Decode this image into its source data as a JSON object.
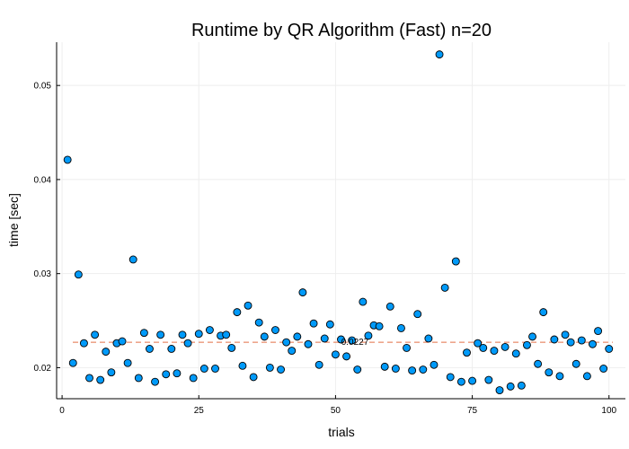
{
  "chart_data": {
    "type": "scatter",
    "title": "Runtime by QR Algorithm (Fast)  n=20",
    "xlabel": "trials",
    "ylabel": "time [sec]",
    "xlim": [
      -1,
      103
    ],
    "ylim": [
      0.0167,
      0.0546
    ],
    "xticks": [
      0,
      25,
      50,
      75,
      100
    ],
    "xtick_labels": [
      "0",
      "25",
      "50",
      "75",
      "100"
    ],
    "yticks": [
      0.02,
      0.03,
      0.04,
      0.05
    ],
    "ytick_labels": [
      "0.02",
      "0.03",
      "0.04",
      "0.05"
    ],
    "grid": true,
    "legend": "none",
    "marker_color": "#009af9",
    "marker_edge_color": "#000000",
    "mean_line_color": "#e26f46",
    "mean_value": 0.0227,
    "mean_label": "0.0227",
    "series": [
      {
        "x": [
          1,
          2,
          3,
          4,
          5,
          6,
          7,
          8,
          9,
          10,
          11,
          12,
          13,
          14,
          15,
          16,
          17,
          18,
          19,
          20,
          21,
          22,
          23,
          24,
          25,
          26,
          27,
          28,
          29,
          30,
          31,
          32,
          33,
          34,
          35,
          36,
          37,
          38,
          39,
          40,
          41,
          42,
          43,
          44,
          45,
          46,
          47,
          48,
          49,
          50,
          51,
          52,
          53,
          54,
          55,
          56,
          57,
          58,
          59,
          60,
          61,
          62,
          63,
          64,
          65,
          66,
          67,
          68,
          69,
          70,
          71,
          72,
          73,
          74,
          75,
          76,
          77,
          78,
          79,
          80,
          81,
          82,
          83,
          84,
          85,
          86,
          87,
          88,
          89,
          90,
          91,
          92,
          93,
          94,
          95,
          96,
          97,
          98,
          99,
          100
        ],
        "values": [
          0.0421,
          0.0205,
          0.0299,
          0.0226,
          0.0189,
          0.0235,
          0.0187,
          0.0217,
          0.0195,
          0.0226,
          0.0228,
          0.0205,
          0.0315,
          0.0189,
          0.0237,
          0.022,
          0.0185,
          0.0235,
          0.0193,
          0.022,
          0.0194,
          0.0235,
          0.0226,
          0.0189,
          0.0236,
          0.0199,
          0.024,
          0.0199,
          0.0234,
          0.0235,
          0.0221,
          0.0259,
          0.0202,
          0.0266,
          0.019,
          0.0248,
          0.0233,
          0.02,
          0.024,
          0.0198,
          0.0227,
          0.0218,
          0.0233,
          0.028,
          0.0225,
          0.0247,
          0.0203,
          0.0231,
          0.0246,
          0.0214,
          0.023,
          0.0212,
          0.0229,
          0.0198,
          0.027,
          0.0234,
          0.0245,
          0.0244,
          0.0201,
          0.0265,
          0.0199,
          0.0242,
          0.0221,
          0.0197,
          0.0257,
          0.0198,
          0.0231,
          0.0203,
          0.0533,
          0.0285,
          0.019,
          0.0313,
          0.0185,
          0.0216,
          0.0186,
          0.0226,
          0.0221,
          0.0187,
          0.0218,
          0.0176,
          0.0222,
          0.018,
          0.0215,
          0.0181,
          0.0224,
          0.0233,
          0.0204,
          0.0259,
          0.0195,
          0.023,
          0.0191,
          0.0235,
          0.0227,
          0.0204,
          0.0229,
          0.0191,
          0.0225,
          0.0239,
          0.0199,
          0.022
        ]
      }
    ]
  }
}
